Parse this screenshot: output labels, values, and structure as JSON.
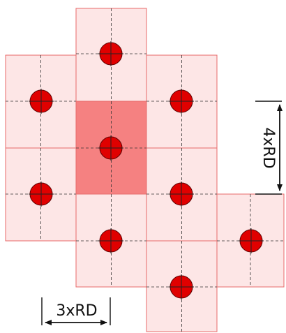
{
  "labels": {
    "vertical_dimension": "4xRD",
    "horizontal_dimension": "3xRD"
  },
  "colors": {
    "cell_fill": "#fce0e0",
    "cell_stroke": "#e86a6a",
    "center_cell_fill": "#f47a7a",
    "dot_fill": "#e00000",
    "dot_stroke": "#5a0000",
    "crosshair": "#333333",
    "dimension_line": "#111111"
  },
  "elements": {
    "cell_count": 9,
    "dot_count": 9,
    "highlighted_cell": "center"
  }
}
